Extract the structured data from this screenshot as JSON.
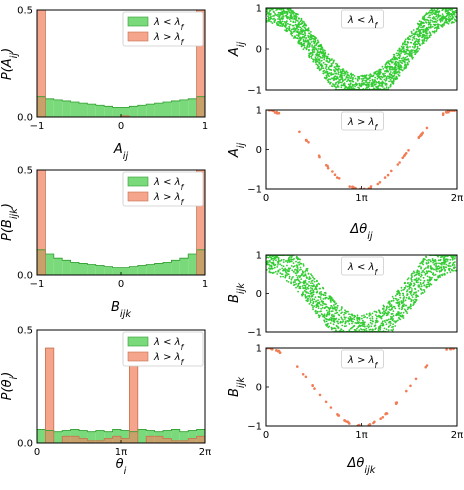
{
  "colors": {
    "green_fill": "#7ad97a",
    "green_edge": "#2e9e2e",
    "orange_fill": "#f4a58b",
    "orange_edge": "#c8714f",
    "overlap": "#c8a06a",
    "scatter_green": "#33cc33",
    "scatter_orange": "#f07d55"
  },
  "chart_data": [
    {
      "type": "bar",
      "subtype": "histogram",
      "ylabel": "P(A_ij)",
      "xlabel": "A_ij",
      "xlim": [
        -1,
        1
      ],
      "ylim": [
        0,
        0.5
      ],
      "xticks": [
        {
          "v": -1,
          "label": "−1"
        },
        {
          "v": 0,
          "label": "0"
        },
        {
          "v": 1,
          "label": "1"
        }
      ],
      "yticks": [
        {
          "v": 0.0,
          "label": "0.0"
        },
        {
          "v": 0.5,
          "label": "0.5"
        }
      ],
      "legend": [
        "λ < λ_f",
        "λ > λ_f"
      ],
      "legend_position": "top-right",
      "bin_edges": [
        -1.0,
        -0.9,
        -0.8,
        -0.7,
        -0.6,
        -0.5,
        -0.4,
        -0.3,
        -0.2,
        -0.1,
        0.0,
        0.1,
        0.2,
        0.3,
        0.4,
        0.5,
        0.6,
        0.7,
        0.8,
        0.9,
        1.0
      ],
      "series": [
        {
          "name": "λ < λ_f",
          "values": [
            0.095,
            0.085,
            0.08,
            0.075,
            0.07,
            0.065,
            0.06,
            0.055,
            0.05,
            0.045,
            0.045,
            0.05,
            0.055,
            0.06,
            0.065,
            0.07,
            0.075,
            0.08,
            0.085,
            0.095
          ]
        },
        {
          "name": "λ > λ_f",
          "values": [
            0.5,
            0.0,
            0.0,
            0.0,
            0.0,
            0.0,
            0.0,
            0.0,
            0.0,
            0.0,
            0.005,
            0.0,
            0.0,
            0.0,
            0.0,
            0.0,
            0.0,
            0.0,
            0.0,
            0.5
          ]
        }
      ]
    },
    {
      "type": "bar",
      "subtype": "histogram",
      "ylabel": "P(B_ijk)",
      "xlabel": "B_ijk",
      "xlim": [
        -1,
        1
      ],
      "ylim": [
        0,
        0.5
      ],
      "xticks": [
        {
          "v": -1,
          "label": "−1"
        },
        {
          "v": 0,
          "label": "0"
        },
        {
          "v": 1,
          "label": "1"
        }
      ],
      "yticks": [
        {
          "v": 0.0,
          "label": "0.0"
        },
        {
          "v": 0.5,
          "label": "0.5"
        }
      ],
      "legend": [
        "λ < λ_f",
        "λ > λ_f"
      ],
      "legend_position": "top-right",
      "bin_edges": [
        -1.0,
        -0.9,
        -0.8,
        -0.7,
        -0.6,
        -0.5,
        -0.4,
        -0.3,
        -0.2,
        -0.1,
        0.0,
        0.1,
        0.2,
        0.3,
        0.4,
        0.5,
        0.6,
        0.7,
        0.8,
        0.9,
        1.0
      ],
      "series": [
        {
          "name": "λ < λ_f",
          "values": [
            0.12,
            0.1,
            0.08,
            0.07,
            0.06,
            0.055,
            0.05,
            0.045,
            0.04,
            0.035,
            0.035,
            0.04,
            0.045,
            0.05,
            0.055,
            0.06,
            0.07,
            0.08,
            0.1,
            0.12
          ]
        },
        {
          "name": "λ > λ_f",
          "values": [
            0.5,
            0.0,
            0.0,
            0.0,
            0.0,
            0.0,
            0.0,
            0.0,
            0.0,
            0.0,
            0.0,
            0.0,
            0.0,
            0.0,
            0.0,
            0.0,
            0.0,
            0.0,
            0.0,
            0.5
          ]
        }
      ]
    },
    {
      "type": "bar",
      "subtype": "histogram",
      "ylabel": "P(θ_i)",
      "xlabel": "θ_i",
      "xlim": [
        0,
        2
      ],
      "x_unit": "π",
      "ylim": [
        0,
        0.5
      ],
      "xticks": [
        {
          "v": 0,
          "label": "0"
        },
        {
          "v": 1,
          "label": "1π"
        },
        {
          "v": 2,
          "label": "2π"
        }
      ],
      "yticks": [
        {
          "v": 0.0,
          "label": "0.0"
        },
        {
          "v": 0.5,
          "label": "0.5"
        }
      ],
      "legend": [
        "λ < λ_f",
        "λ > λ_f"
      ],
      "legend_position": "top-right",
      "bin_edges": [
        0.0,
        0.1,
        0.2,
        0.3,
        0.4,
        0.5,
        0.6,
        0.7,
        0.8,
        0.9,
        1.0,
        1.1,
        1.2,
        1.3,
        1.4,
        1.5,
        1.6,
        1.7,
        1.8,
        1.9,
        2.0
      ],
      "series": [
        {
          "name": "λ < λ_f",
          "values": [
            0.06,
            0.055,
            0.05,
            0.055,
            0.06,
            0.055,
            0.05,
            0.055,
            0.05,
            0.06,
            0.055,
            0.05,
            0.06,
            0.055,
            0.05,
            0.055,
            0.06,
            0.05,
            0.055,
            0.06
          ]
        },
        {
          "name": "λ > λ_f",
          "values": [
            0.0,
            0.42,
            0.0,
            0.03,
            0.03,
            0.02,
            0.01,
            0.01,
            0.02,
            0.03,
            0.02,
            0.4,
            0.0,
            0.03,
            0.03,
            0.02,
            0.01,
            0.01,
            0.02,
            0.03
          ]
        }
      ]
    },
    {
      "type": "scatter",
      "ylabel": "A_ij",
      "xlabel": "",
      "xlim": [
        0,
        2
      ],
      "x_unit": "π",
      "ylim": [
        -1,
        1
      ],
      "xticks": [],
      "yticks": [
        {
          "v": -1,
          "label": "−1"
        },
        {
          "v": 0,
          "label": "0"
        },
        {
          "v": 1,
          "label": "1"
        }
      ],
      "legend": [
        "λ < λ_f"
      ],
      "legend_position": "top-center",
      "series": [
        {
          "name": "λ < λ_f",
          "relation": "y ≈ cos(x·π), spread ≈ 0.35",
          "n_points": 2200
        }
      ]
    },
    {
      "type": "scatter",
      "ylabel": "A_ij",
      "xlabel": "Δθ_ij",
      "xlim": [
        0,
        2
      ],
      "x_unit": "π",
      "ylim": [
        -1,
        1
      ],
      "xticks": [
        {
          "v": 0,
          "label": "0"
        },
        {
          "v": 1,
          "label": "1π"
        },
        {
          "v": 2,
          "label": "2π"
        }
      ],
      "yticks": [
        {
          "v": -1,
          "label": "−1"
        },
        {
          "v": 0,
          "label": "0"
        },
        {
          "v": 1,
          "label": "1"
        }
      ],
      "legend": [
        "λ > λ_f"
      ],
      "legend_position": "top-center",
      "series": [
        {
          "name": "λ > λ_f",
          "relation": "y = cos(x·π)",
          "n_points": 70
        }
      ]
    },
    {
      "type": "scatter",
      "ylabel": "B_ijk",
      "xlabel": "",
      "xlim": [
        0,
        2
      ],
      "x_unit": "π",
      "ylim": [
        -1,
        1
      ],
      "xticks": [],
      "yticks": [
        {
          "v": -1,
          "label": "−1"
        },
        {
          "v": 0,
          "label": "0"
        },
        {
          "v": 1,
          "label": "1"
        }
      ],
      "legend": [
        "λ < λ_f"
      ],
      "legend_position": "top-center",
      "series": [
        {
          "name": "λ < λ_f",
          "relation": "y ≈ cos(x·π), spread ≈ 0.45",
          "n_points": 1700
        }
      ]
    },
    {
      "type": "scatter",
      "ylabel": "B_ijk",
      "xlabel": "Δθ_ijk",
      "xlim": [
        0,
        2
      ],
      "x_unit": "π",
      "ylim": [
        -1,
        1
      ],
      "xticks": [
        {
          "v": 0,
          "label": "0"
        },
        {
          "v": 1,
          "label": "1π"
        },
        {
          "v": 2,
          "label": "2π"
        }
      ],
      "yticks": [
        {
          "v": -1,
          "label": "−1"
        },
        {
          "v": 0,
          "label": "0"
        },
        {
          "v": 1,
          "label": "1"
        }
      ],
      "legend": [
        "λ > λ_f"
      ],
      "legend_position": "top-center",
      "series": [
        {
          "name": "λ > λ_f",
          "relation": "y = cos(x·π)",
          "n_points": 65
        }
      ]
    }
  ]
}
